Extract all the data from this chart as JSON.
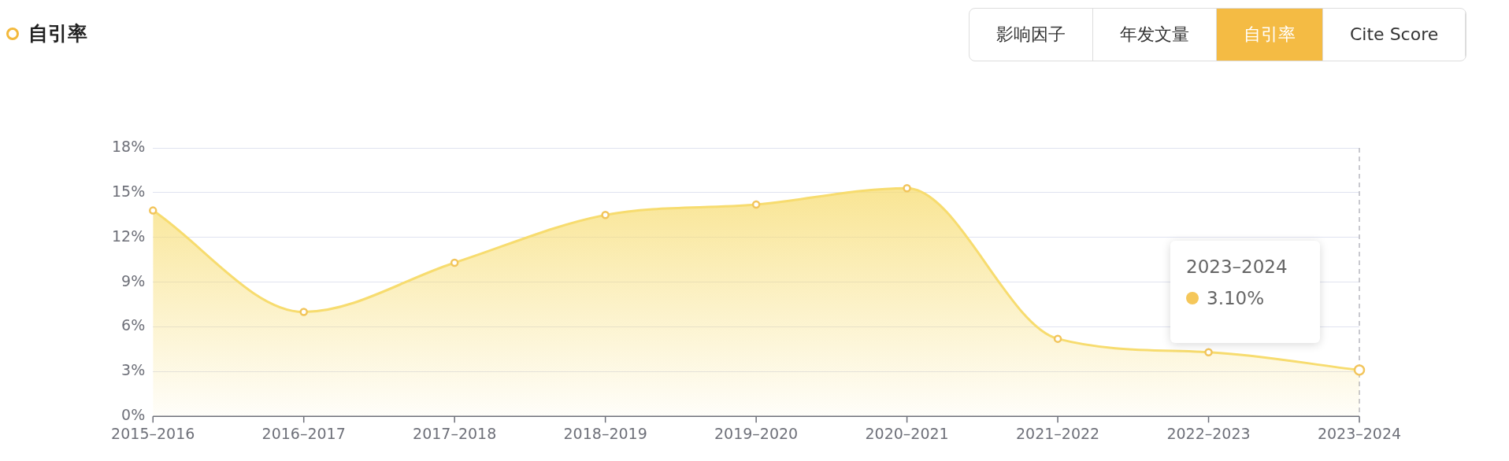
{
  "chart_data": {
    "type": "area",
    "title": "自引率",
    "categories": [
      "2015–2016",
      "2016–2017",
      "2017–2018",
      "2018–2019",
      "2019–2020",
      "2020–2021",
      "2021–2022",
      "2022–2023",
      "2023–2024"
    ],
    "series": [
      {
        "color": "#f7dc6f",
        "values": [
          13.8,
          7.0,
          10.3,
          13.5,
          14.2,
          15.3,
          5.2,
          4.3,
          3.1
        ]
      }
    ],
    "ylim": [
      0,
      18
    ],
    "yticks": [
      {
        "value": 0,
        "label": "0%"
      },
      {
        "value": 3,
        "label": "3%"
      },
      {
        "value": 6,
        "label": "6%"
      },
      {
        "value": 9,
        "label": "9%"
      },
      {
        "value": 12,
        "label": "12%"
      },
      {
        "value": 15,
        "label": "15%"
      },
      {
        "value": 18,
        "label": "18%"
      }
    ],
    "grid": "y",
    "legend": false,
    "marker": "circle",
    "ref_lines": [
      {
        "axis": "x",
        "value": "2023–2024",
        "color": "#b8b8c0",
        "line_style": "dashed"
      }
    ],
    "annotations": [
      "2023–2024\n3.10%",
      "影响因子",
      "年发文量",
      "自引率",
      "Cite Score"
    ]
  }
}
